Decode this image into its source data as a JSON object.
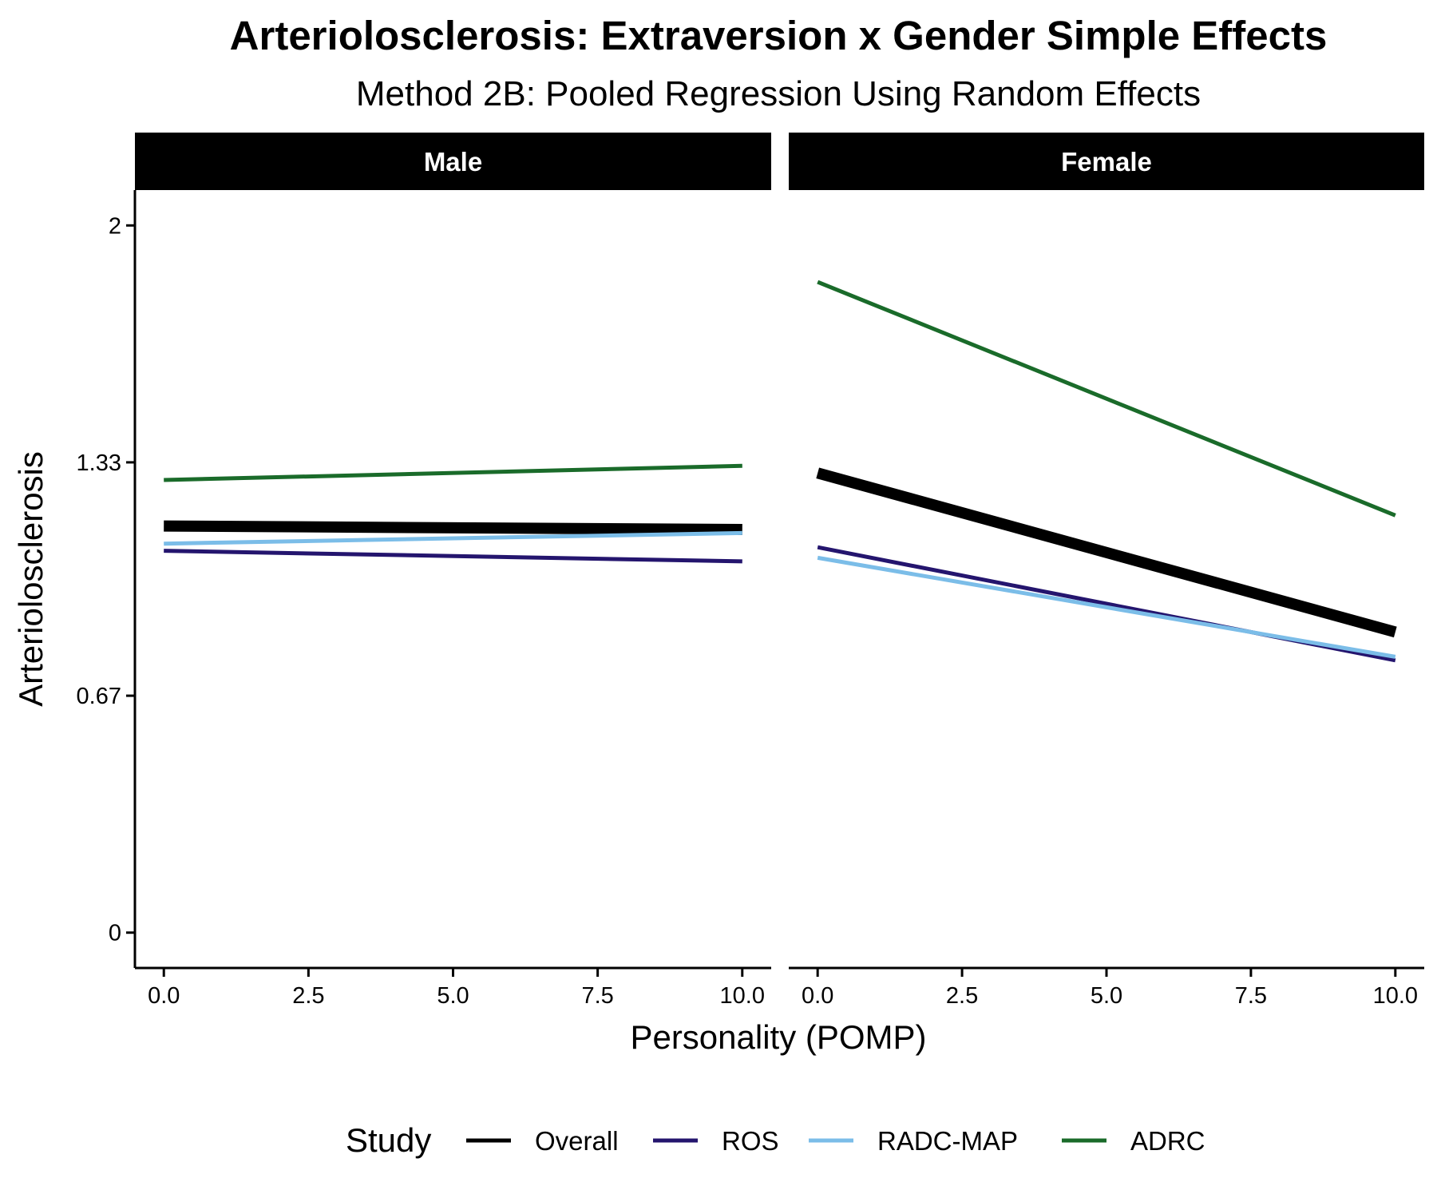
{
  "chart_data": {
    "type": "line",
    "title": "Arteriolosclerosis: Extraversion x Gender Simple Effects",
    "subtitle": "Method 2B: Pooled Regression Using Random Effects",
    "xlabel": "Personality (POMP)",
    "ylabel": "Arteriolosclerosis",
    "xlim": [
      -0.5,
      10.5
    ],
    "ylim": [
      -0.1,
      2.1
    ],
    "x_ticks": [
      0,
      2.5,
      5,
      7.5,
      10
    ],
    "x_tick_labels": [
      "0.0",
      "2.5",
      "5.0",
      "7.5",
      "10.0"
    ],
    "y_ticks": [
      0,
      0.67,
      1.33,
      2
    ],
    "y_tick_labels": [
      "0",
      "0.67",
      "1.33",
      "2"
    ],
    "grid": false,
    "legend": {
      "title": "Study",
      "placement": "bottom",
      "entries": [
        "Overall",
        "ROS",
        "RADC-MAP",
        "ADRC"
      ]
    },
    "panels": [
      {
        "label": "Male",
        "series": [
          {
            "name": "Overall",
            "color": "#000000",
            "emphasis": "thick",
            "x": [
              0,
              10
            ],
            "y": [
              1.15,
              1.14
            ]
          },
          {
            "name": "ROS",
            "color": "#24156e",
            "x": [
              0,
              10
            ],
            "y": [
              1.08,
              1.05
            ]
          },
          {
            "name": "RADC-MAP",
            "color": "#7bbde8",
            "x": [
              0,
              10
            ],
            "y": [
              1.1,
              1.13
            ]
          },
          {
            "name": "ADRC",
            "color": "#1a6b2a",
            "x": [
              0,
              10
            ],
            "y": [
              1.28,
              1.32
            ]
          }
        ]
      },
      {
        "label": "Female",
        "series": [
          {
            "name": "Overall",
            "color": "#000000",
            "emphasis": "thick",
            "x": [
              0,
              10
            ],
            "y": [
              1.3,
              0.85
            ]
          },
          {
            "name": "ROS",
            "color": "#24156e",
            "x": [
              0,
              10
            ],
            "y": [
              1.09,
              0.77
            ]
          },
          {
            "name": "RADC-MAP",
            "color": "#7bbde8",
            "x": [
              0,
              10
            ],
            "y": [
              1.06,
              0.78
            ]
          },
          {
            "name": "ADRC",
            "color": "#1a6b2a",
            "x": [
              0,
              10
            ],
            "y": [
              1.84,
              1.18
            ]
          }
        ]
      }
    ]
  }
}
